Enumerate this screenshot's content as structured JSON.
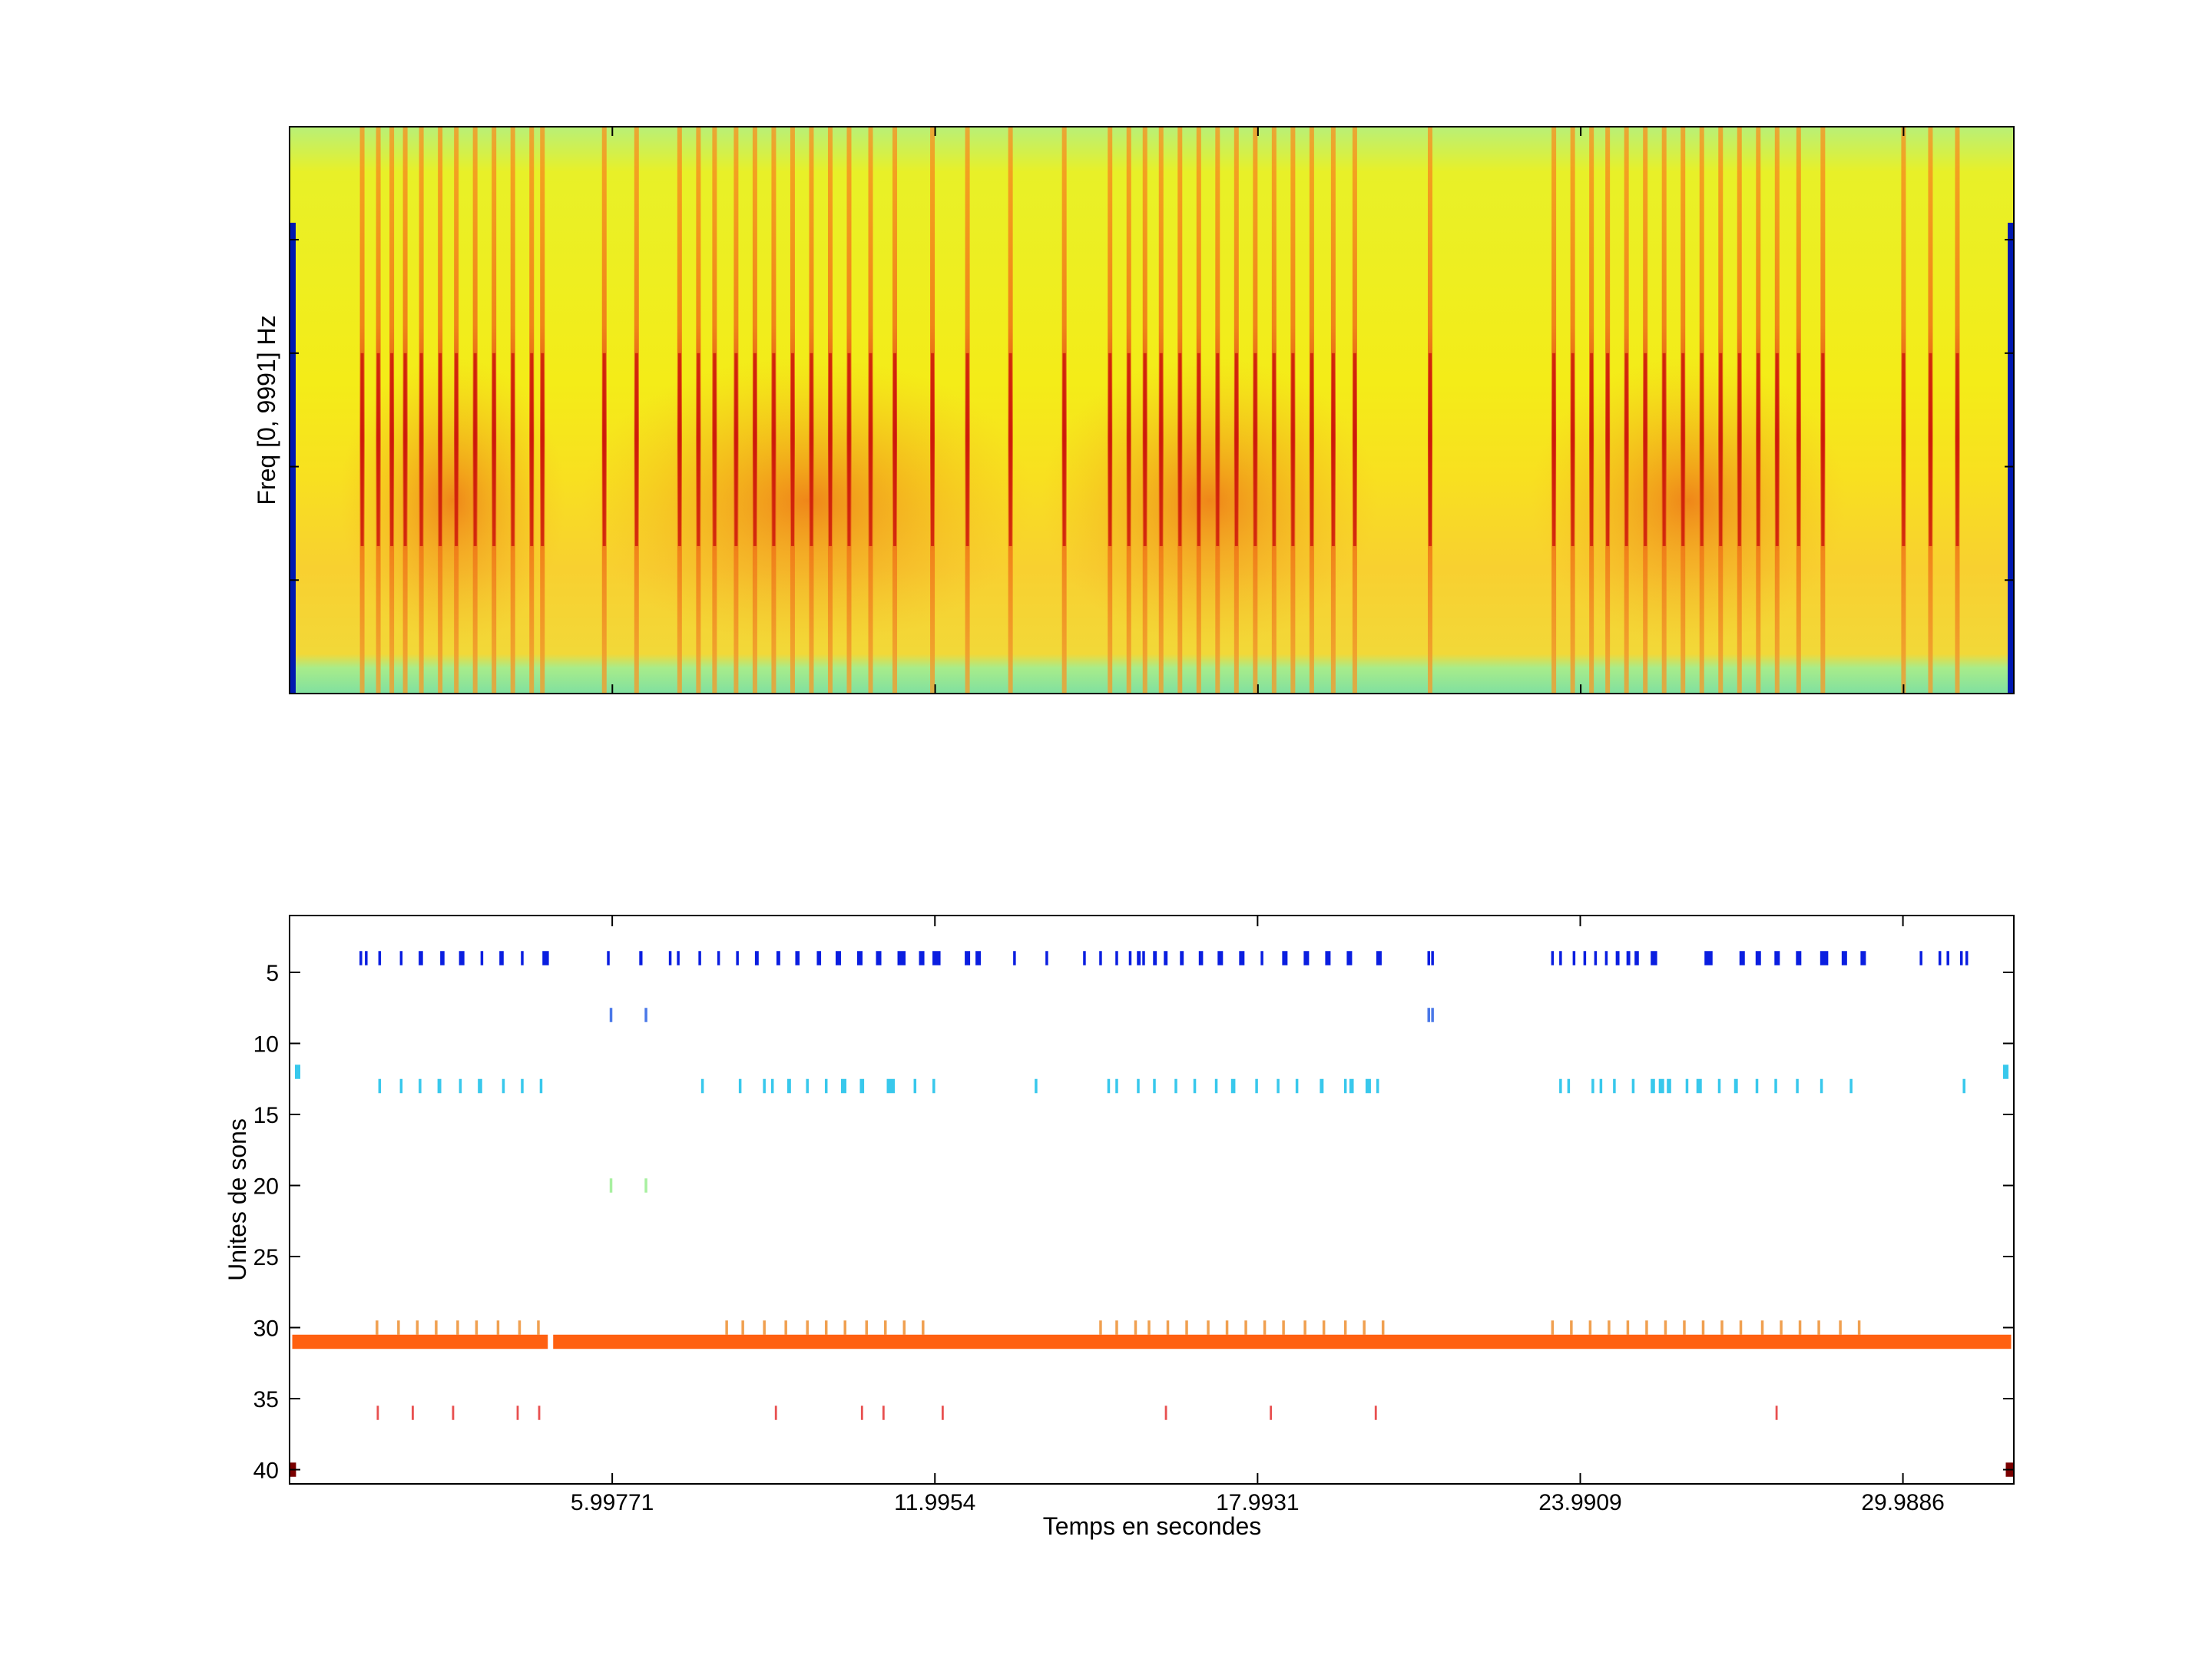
{
  "chart_data": [
    {
      "type": "heatmap",
      "title": "",
      "xlabel": "",
      "ylabel": "Freq [0, 9991] Hz",
      "xlim": [
        0,
        32.05
      ],
      "ylim": [
        0,
        9991
      ],
      "grid": false,
      "colors": {
        "low": "#0000a8",
        "background": "#e0f020",
        "mid": "#ffb020",
        "high": "#d01010"
      },
      "stripe_times": [
        1.35,
        1.65,
        1.9,
        2.15,
        2.45,
        2.8,
        3.1,
        3.45,
        3.8,
        4.15,
        4.5,
        4.7,
        5.85,
        6.45,
        7.25,
        7.6,
        7.9,
        8.3,
        8.65,
        9.0,
        9.35,
        9.7,
        10.05,
        10.4,
        10.8,
        11.25,
        11.95,
        12.6,
        13.4,
        14.4,
        15.25,
        15.6,
        15.9,
        16.2,
        16.55,
        16.9,
        17.25,
        17.6,
        17.95,
        18.3,
        18.65,
        19.0,
        19.4,
        19.8,
        21.2,
        23.5,
        23.85,
        24.2,
        24.5,
        24.85,
        25.2,
        25.55,
        25.9,
        26.25,
        26.6,
        26.95,
        27.3,
        27.65,
        28.05,
        28.5,
        30.0,
        30.5,
        31.0
      ]
    },
    {
      "type": "scatter",
      "title": "",
      "xlabel": "Temps en secondes",
      "ylabel": "Unites de sons",
      "xlim": [
        0,
        32.05
      ],
      "ylim": [
        41,
        1
      ],
      "x_ticks": [
        5.99771,
        11.9954,
        17.9931,
        23.9909,
        29.9886
      ],
      "x_tick_labels": [
        "5.99771",
        "11.9954",
        "17.9931",
        "23.9909",
        "29.9886"
      ],
      "y_ticks": [
        5,
        10,
        15,
        20,
        25,
        30,
        35,
        40
      ],
      "y_tick_labels": [
        "5",
        "10",
        "15",
        "20",
        "25",
        "30",
        "35",
        "40"
      ],
      "grid": false,
      "series": [
        {
          "unit": 4,
          "color": "#0a1ee0",
          "segments": [
            [
              1.3,
              1.35
            ],
            [
              1.4,
              1.45
            ],
            [
              1.65,
              1.7
            ],
            [
              2.05,
              2.1
            ],
            [
              2.4,
              2.48
            ],
            [
              2.8,
              2.88
            ],
            [
              3.15,
              3.25
            ],
            [
              3.55,
              3.6
            ],
            [
              3.9,
              3.98
            ],
            [
              4.3,
              4.35
            ],
            [
              4.7,
              4.82
            ],
            [
              5.9,
              5.95
            ],
            [
              6.5,
              6.56
            ],
            [
              7.05,
              7.1
            ],
            [
              7.2,
              7.25
            ],
            [
              7.6,
              7.65
            ],
            [
              7.95,
              8.0
            ],
            [
              8.3,
              8.35
            ],
            [
              8.65,
              8.72
            ],
            [
              9.05,
              9.12
            ],
            [
              9.4,
              9.48
            ],
            [
              9.8,
              9.88
            ],
            [
              10.15,
              10.25
            ],
            [
              10.55,
              10.65
            ],
            [
              10.9,
              11.0
            ],
            [
              11.3,
              11.45
            ],
            [
              11.7,
              11.8
            ],
            [
              11.95,
              12.1
            ],
            [
              12.55,
              12.65
            ],
            [
              12.75,
              12.85
            ],
            [
              13.45,
              13.5
            ],
            [
              14.05,
              14.1
            ],
            [
              14.75,
              14.8
            ],
            [
              15.05,
              15.1
            ],
            [
              15.35,
              15.4
            ],
            [
              15.6,
              15.65
            ],
            [
              15.75,
              15.82
            ],
            [
              15.85,
              15.9
            ],
            [
              16.05,
              16.12
            ],
            [
              16.25,
              16.32
            ],
            [
              16.55,
              16.62
            ],
            [
              16.9,
              16.98
            ],
            [
              17.25,
              17.35
            ],
            [
              17.65,
              17.75
            ],
            [
              18.05,
              18.1
            ],
            [
              18.45,
              18.55
            ],
            [
              18.85,
              18.95
            ],
            [
              19.25,
              19.35
            ],
            [
              19.65,
              19.75
            ],
            [
              20.2,
              20.3
            ],
            [
              21.15,
              21.2
            ],
            [
              21.22,
              21.27
            ],
            [
              23.45,
              23.5
            ],
            [
              23.6,
              23.65
            ],
            [
              23.85,
              23.9
            ],
            [
              24.05,
              24.1
            ],
            [
              24.25,
              24.3
            ],
            [
              24.45,
              24.5
            ],
            [
              24.65,
              24.72
            ],
            [
              24.85,
              24.92
            ],
            [
              25.0,
              25.08
            ],
            [
              25.3,
              25.42
            ],
            [
              26.3,
              26.45
            ],
            [
              26.95,
              27.05
            ],
            [
              27.25,
              27.35
            ],
            [
              27.6,
              27.7
            ],
            [
              28.0,
              28.1
            ],
            [
              28.45,
              28.6
            ],
            [
              28.85,
              28.95
            ],
            [
              29.2,
              29.3
            ],
            [
              30.3,
              30.35
            ],
            [
              30.65,
              30.7
            ],
            [
              30.8,
              30.85
            ],
            [
              31.05,
              31.1
            ],
            [
              31.15,
              31.2
            ]
          ]
        },
        {
          "unit": 8,
          "color": "#4a78e8",
          "segments": [
            [
              5.95,
              6.0
            ],
            [
              6.6,
              6.65
            ],
            [
              21.15,
              21.2
            ],
            [
              21.22,
              21.27
            ]
          ]
        },
        {
          "unit": 12,
          "color": "#38c8ec",
          "segments": [
            [
              0.1,
              0.2
            ],
            [
              31.85,
              31.95
            ]
          ]
        },
        {
          "unit": 13,
          "color": "#38c8ec",
          "segments": [
            [
              1.65,
              1.7
            ],
            [
              2.05,
              2.1
            ],
            [
              2.4,
              2.45
            ],
            [
              2.75,
              2.82
            ],
            [
              3.15,
              3.2
            ],
            [
              3.5,
              3.58
            ],
            [
              3.95,
              4.0
            ],
            [
              4.3,
              4.35
            ],
            [
              4.65,
              4.7
            ],
            [
              7.65,
              7.7
            ],
            [
              8.35,
              8.4
            ],
            [
              8.8,
              8.85
            ],
            [
              8.95,
              9.0
            ],
            [
              9.25,
              9.32
            ],
            [
              9.6,
              9.65
            ],
            [
              9.95,
              10.0
            ],
            [
              10.25,
              10.35
            ],
            [
              10.6,
              10.68
            ],
            [
              11.1,
              11.25
            ],
            [
              11.6,
              11.65
            ],
            [
              11.95,
              12.0
            ],
            [
              13.85,
              13.9
            ],
            [
              15.2,
              15.25
            ],
            [
              15.35,
              15.4
            ],
            [
              15.75,
              15.8
            ],
            [
              16.05,
              16.1
            ],
            [
              16.45,
              16.5
            ],
            [
              16.8,
              16.85
            ],
            [
              17.2,
              17.25
            ],
            [
              17.5,
              17.58
            ],
            [
              17.95,
              18.0
            ],
            [
              18.35,
              18.4
            ],
            [
              18.7,
              18.75
            ],
            [
              19.15,
              19.22
            ],
            [
              19.6,
              19.65
            ],
            [
              19.7,
              19.78
            ],
            [
              20.0,
              20.1
            ],
            [
              20.2,
              20.25
            ],
            [
              23.6,
              23.65
            ],
            [
              23.75,
              23.8
            ],
            [
              24.2,
              24.25
            ],
            [
              24.35,
              24.4
            ],
            [
              24.6,
              24.65
            ],
            [
              24.95,
              25.0
            ],
            [
              25.3,
              25.38
            ],
            [
              25.45,
              25.55
            ],
            [
              25.6,
              25.68
            ],
            [
              25.95,
              26.0
            ],
            [
              26.15,
              26.25
            ],
            [
              26.55,
              26.6
            ],
            [
              26.85,
              26.92
            ],
            [
              27.25,
              27.3
            ],
            [
              27.6,
              27.65
            ],
            [
              28.0,
              28.05
            ],
            [
              28.45,
              28.5
            ],
            [
              29.0,
              29.05
            ],
            [
              31.1,
              31.15
            ]
          ]
        },
        {
          "unit": 20,
          "color": "#a8f0a0",
          "segments": [
            [
              5.95,
              6.0
            ],
            [
              6.6,
              6.65
            ]
          ]
        },
        {
          "unit": 30,
          "color": "#f0a050",
          "segments": [
            [
              1.6,
              1.65
            ],
            [
              2.0,
              2.05
            ],
            [
              2.35,
              2.4
            ],
            [
              2.7,
              2.75
            ],
            [
              3.1,
              3.15
            ],
            [
              3.45,
              3.5
            ],
            [
              3.85,
              3.9
            ],
            [
              4.25,
              4.3
            ],
            [
              4.6,
              4.65
            ],
            [
              8.1,
              8.15
            ],
            [
              8.4,
              8.45
            ],
            [
              8.8,
              8.85
            ],
            [
              9.2,
              9.25
            ],
            [
              9.6,
              9.65
            ],
            [
              9.95,
              10.0
            ],
            [
              10.3,
              10.35
            ],
            [
              10.7,
              10.75
            ],
            [
              11.05,
              11.1
            ],
            [
              11.4,
              11.45
            ],
            [
              11.75,
              11.8
            ],
            [
              15.05,
              15.1
            ],
            [
              15.35,
              15.4
            ],
            [
              15.7,
              15.75
            ],
            [
              15.95,
              16.0
            ],
            [
              16.3,
              16.35
            ],
            [
              16.65,
              16.7
            ],
            [
              17.05,
              17.1
            ],
            [
              17.4,
              17.45
            ],
            [
              17.75,
              17.8
            ],
            [
              18.1,
              18.15
            ],
            [
              18.45,
              18.5
            ],
            [
              18.85,
              18.9
            ],
            [
              19.2,
              19.25
            ],
            [
              19.6,
              19.65
            ],
            [
              19.95,
              20.0
            ],
            [
              20.3,
              20.35
            ],
            [
              23.45,
              23.5
            ],
            [
              23.8,
              23.85
            ],
            [
              24.15,
              24.2
            ],
            [
              24.5,
              24.55
            ],
            [
              24.85,
              24.9
            ],
            [
              25.2,
              25.25
            ],
            [
              25.55,
              25.6
            ],
            [
              25.9,
              25.95
            ],
            [
              26.25,
              26.3
            ],
            [
              26.6,
              26.65
            ],
            [
              26.95,
              27.0
            ],
            [
              27.35,
              27.4
            ],
            [
              27.7,
              27.75
            ],
            [
              28.05,
              28.1
            ],
            [
              28.4,
              28.45
            ],
            [
              28.8,
              28.85
            ],
            [
              29.15,
              29.2
            ]
          ]
        },
        {
          "unit": 31,
          "color": "#ff6010",
          "segments": [
            [
              0.05,
              4.8
            ],
            [
              4.9,
              32.0
            ]
          ]
        },
        {
          "unit": 36,
          "color": "#e85050",
          "segments": [
            [
              1.62,
              1.66
            ],
            [
              2.27,
              2.31
            ],
            [
              3.02,
              3.06
            ],
            [
              4.22,
              4.26
            ],
            [
              4.62,
              4.66
            ],
            [
              9.02,
              9.06
            ],
            [
              10.62,
              10.66
            ],
            [
              11.02,
              11.06
            ],
            [
              12.12,
              12.16
            ],
            [
              16.27,
              16.31
            ],
            [
              18.22,
              18.26
            ],
            [
              20.17,
              20.21
            ],
            [
              27.62,
              27.66
            ]
          ]
        },
        {
          "unit": 40,
          "color": "#7a0000",
          "segments": [
            [
              0.0,
              0.12
            ],
            [
              31.9,
              32.05
            ]
          ]
        }
      ]
    }
  ]
}
